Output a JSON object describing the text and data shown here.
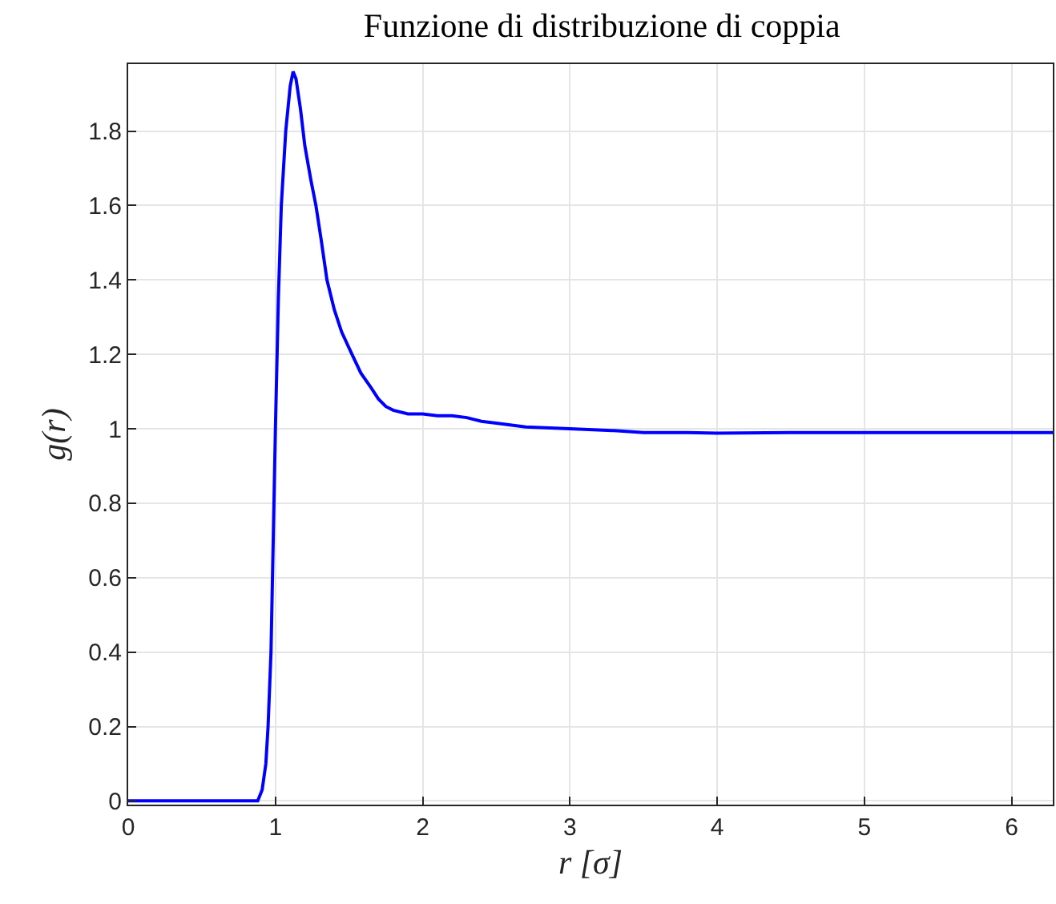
{
  "chart_data": {
    "type": "line",
    "title": "Funzione di distribuzione di coppia",
    "xlabel": "r [σ]",
    "ylabel": "g(r)",
    "x": [
      0,
      0.5,
      0.88,
      0.91,
      0.935,
      0.95,
      0.97,
      0.99,
      1.0,
      1.02,
      1.04,
      1.07,
      1.1,
      1.12,
      1.14,
      1.17,
      1.2,
      1.24,
      1.275,
      1.31,
      1.35,
      1.4,
      1.45,
      1.52,
      1.58,
      1.65,
      1.7,
      1.75,
      1.8,
      1.9,
      2.0,
      2.1,
      2.2,
      2.3,
      2.4,
      2.5,
      2.7,
      3.0,
      3.3,
      3.5,
      3.8,
      4.0,
      4.5,
      5.0,
      5.5,
      6.0,
      6.28
    ],
    "series": [
      {
        "color": "#0000ff",
        "values": [
          0,
          0,
          0,
          0.03,
          0.1,
          0.2,
          0.4,
          0.8,
          1.0,
          1.35,
          1.6,
          1.8,
          1.92,
          1.96,
          1.94,
          1.86,
          1.76,
          1.67,
          1.6,
          1.51,
          1.4,
          1.32,
          1.26,
          1.2,
          1.15,
          1.11,
          1.08,
          1.06,
          1.05,
          1.04,
          1.04,
          1.035,
          1.035,
          1.03,
          1.02,
          1.015,
          1.005,
          1.0,
          0.995,
          0.99,
          0.99,
          0.988,
          0.99,
          0.99,
          0.99,
          0.99,
          0.99
        ]
      }
    ],
    "xlim": [
      0,
      6.28
    ],
    "ylim": [
      -0.01,
      1.98
    ],
    "xticks": [
      0,
      1,
      2,
      3,
      4,
      5,
      6
    ],
    "yticks": [
      0,
      0.2,
      0.4,
      0.6,
      0.8,
      1,
      1.2,
      1.4,
      1.6,
      1.8
    ],
    "grid": true,
    "line_style": "solid",
    "marker": "none"
  }
}
